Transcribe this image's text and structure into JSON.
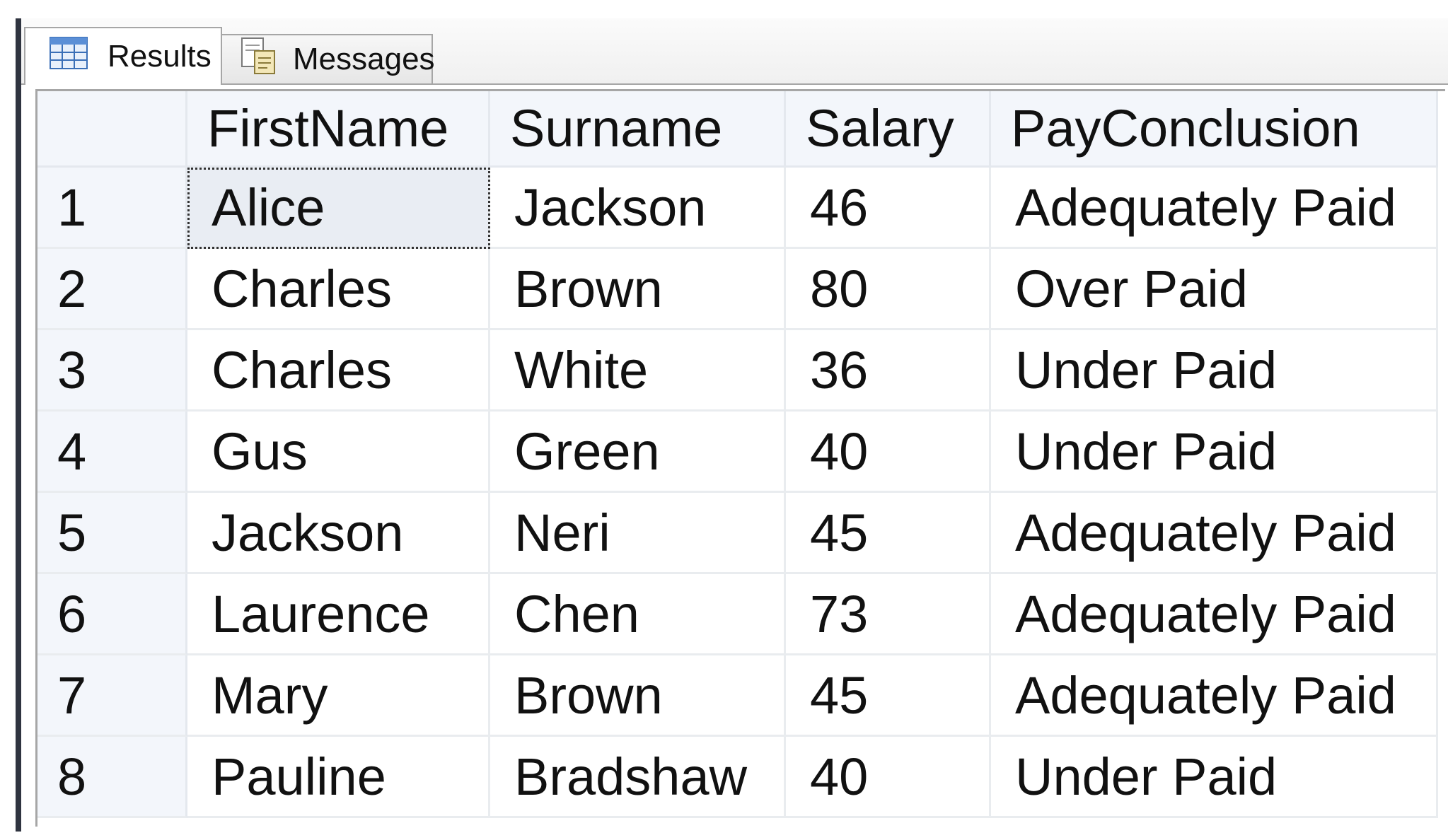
{
  "tabs": [
    {
      "label": "Results",
      "icon": "grid-table-icon",
      "active": true
    },
    {
      "label": "Messages",
      "icon": "messages-document-icon",
      "active": false
    }
  ],
  "grid": {
    "columns": [
      "FirstName",
      "Surname",
      "Salary",
      "PayConclusion"
    ],
    "rows": [
      {
        "num": "1",
        "cells": [
          "Alice",
          "Jackson",
          "46",
          "Adequately Paid"
        ]
      },
      {
        "num": "2",
        "cells": [
          "Charles",
          "Brown",
          "80",
          "Over Paid"
        ]
      },
      {
        "num": "3",
        "cells": [
          "Charles",
          "White",
          "36",
          "Under Paid"
        ]
      },
      {
        "num": "4",
        "cells": [
          "Gus",
          "Green",
          "40",
          "Under Paid"
        ]
      },
      {
        "num": "5",
        "cells": [
          "Jackson",
          "Neri",
          "45",
          "Adequately Paid"
        ]
      },
      {
        "num": "6",
        "cells": [
          "Laurence",
          "Chen",
          "73",
          "Adequately Paid"
        ]
      },
      {
        "num": "7",
        "cells": [
          "Mary",
          "Brown",
          "45",
          "Adequately Paid"
        ]
      },
      {
        "num": "8",
        "cells": [
          "Pauline",
          "Bradshaw",
          "40",
          "Under Paid"
        ]
      }
    ]
  }
}
